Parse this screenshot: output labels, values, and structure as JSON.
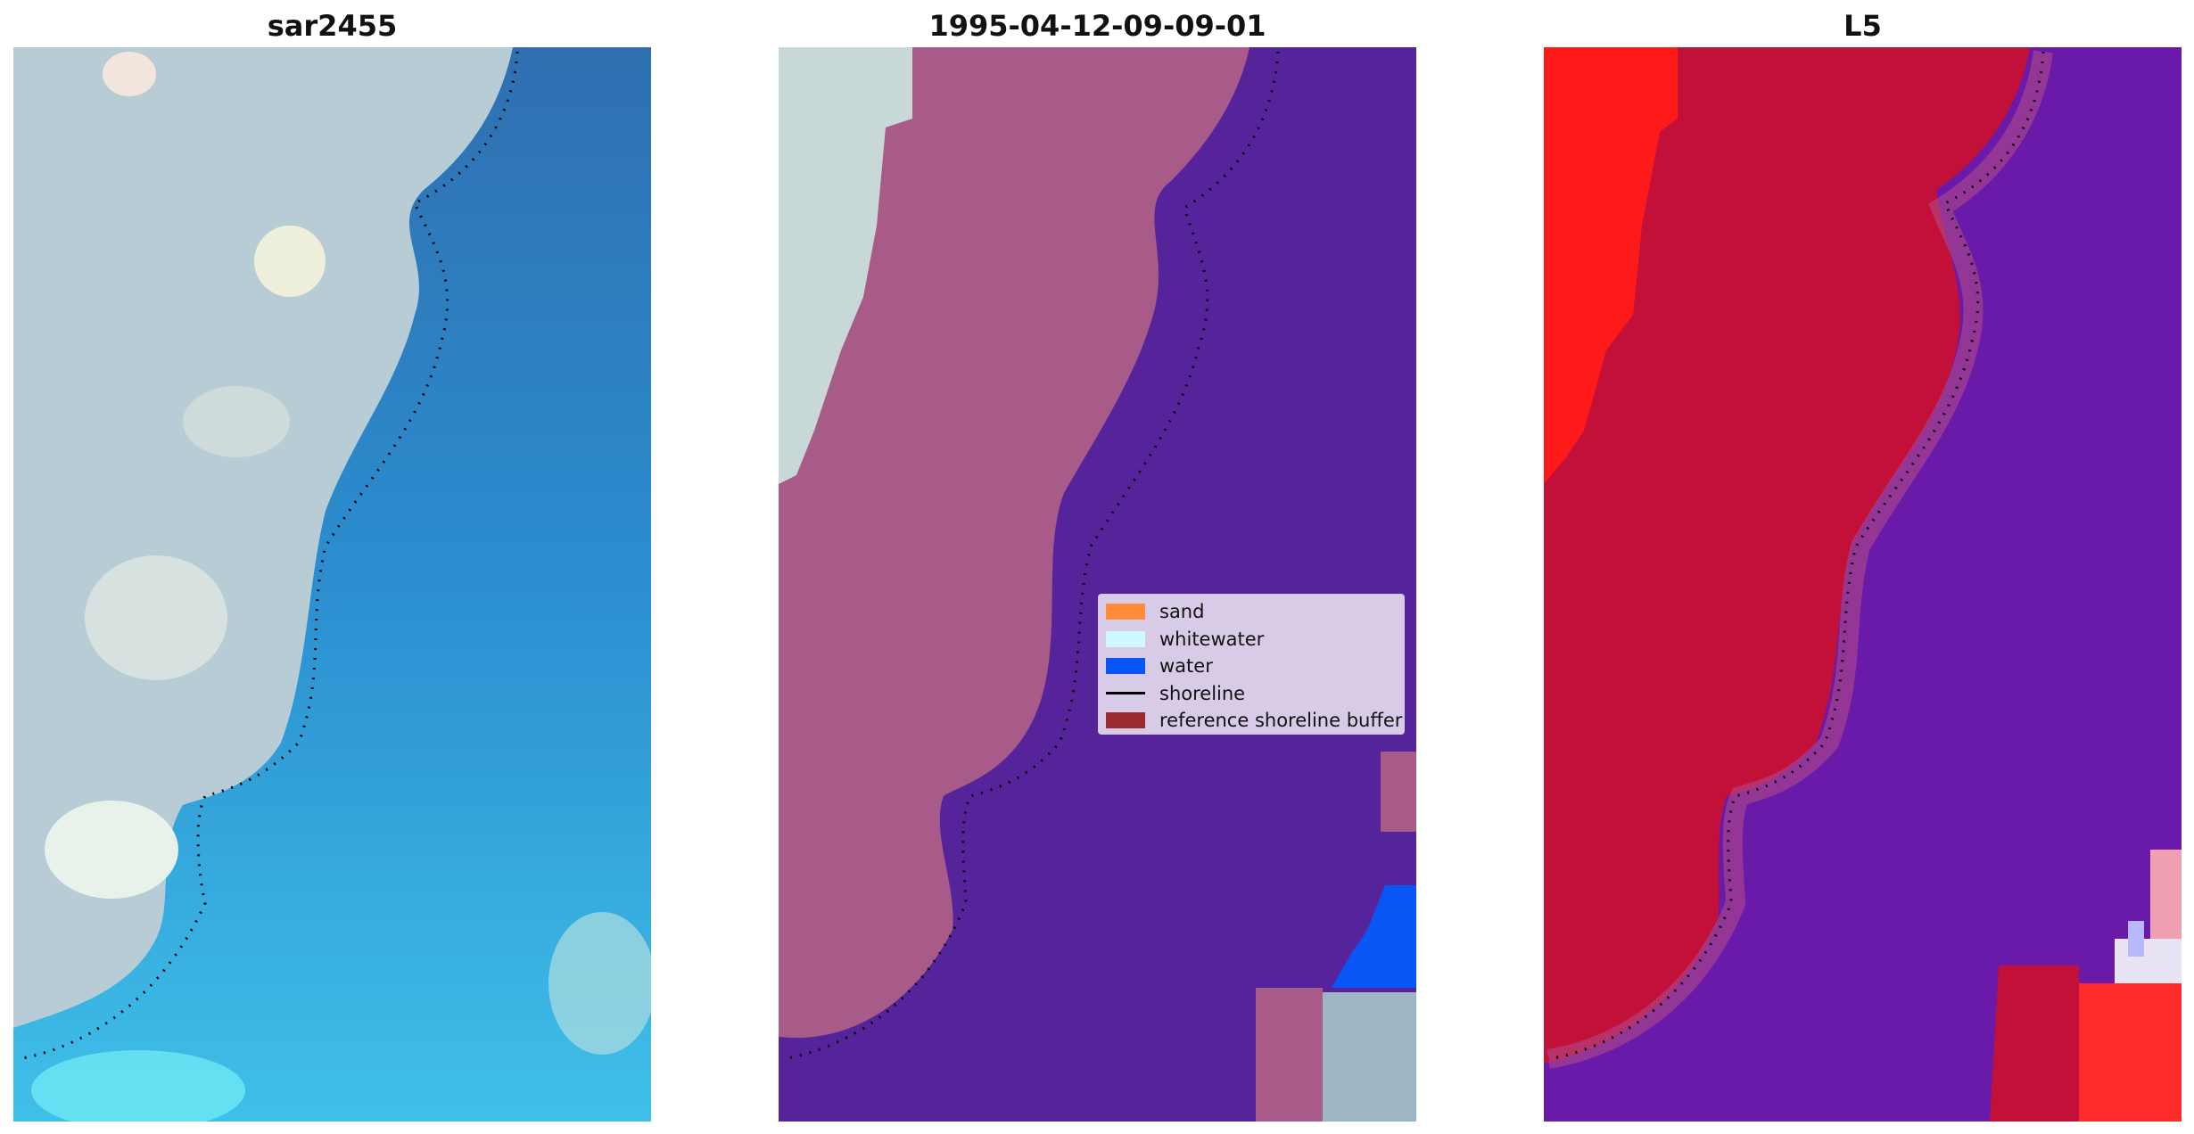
{
  "panels": [
    {
      "title": "sar2455"
    },
    {
      "title": "1995-04-12-09-09-01"
    },
    {
      "title": "L5"
    }
  ],
  "legend": {
    "items": [
      {
        "label": "sand",
        "color": "#ff8c3a",
        "kind": "patch"
      },
      {
        "label": "whitewater",
        "color": "#d0f8ff",
        "kind": "patch"
      },
      {
        "label": "water",
        "color": "#0a55f5",
        "kind": "patch"
      },
      {
        "label": "shoreline",
        "color": "#000000",
        "kind": "line"
      },
      {
        "label": "reference shoreline buffer",
        "color": "#9b2a30",
        "kind": "patch"
      }
    ]
  },
  "colors": {
    "water_rgb": "#3a78b8",
    "land_rgb": "#c8d6d8",
    "land_classified": "#a85a88",
    "water_classified": "#56249a",
    "land_l5": "#c21038",
    "water_l5": "#6a1aa8",
    "bright_red": "#ff1a1a"
  }
}
